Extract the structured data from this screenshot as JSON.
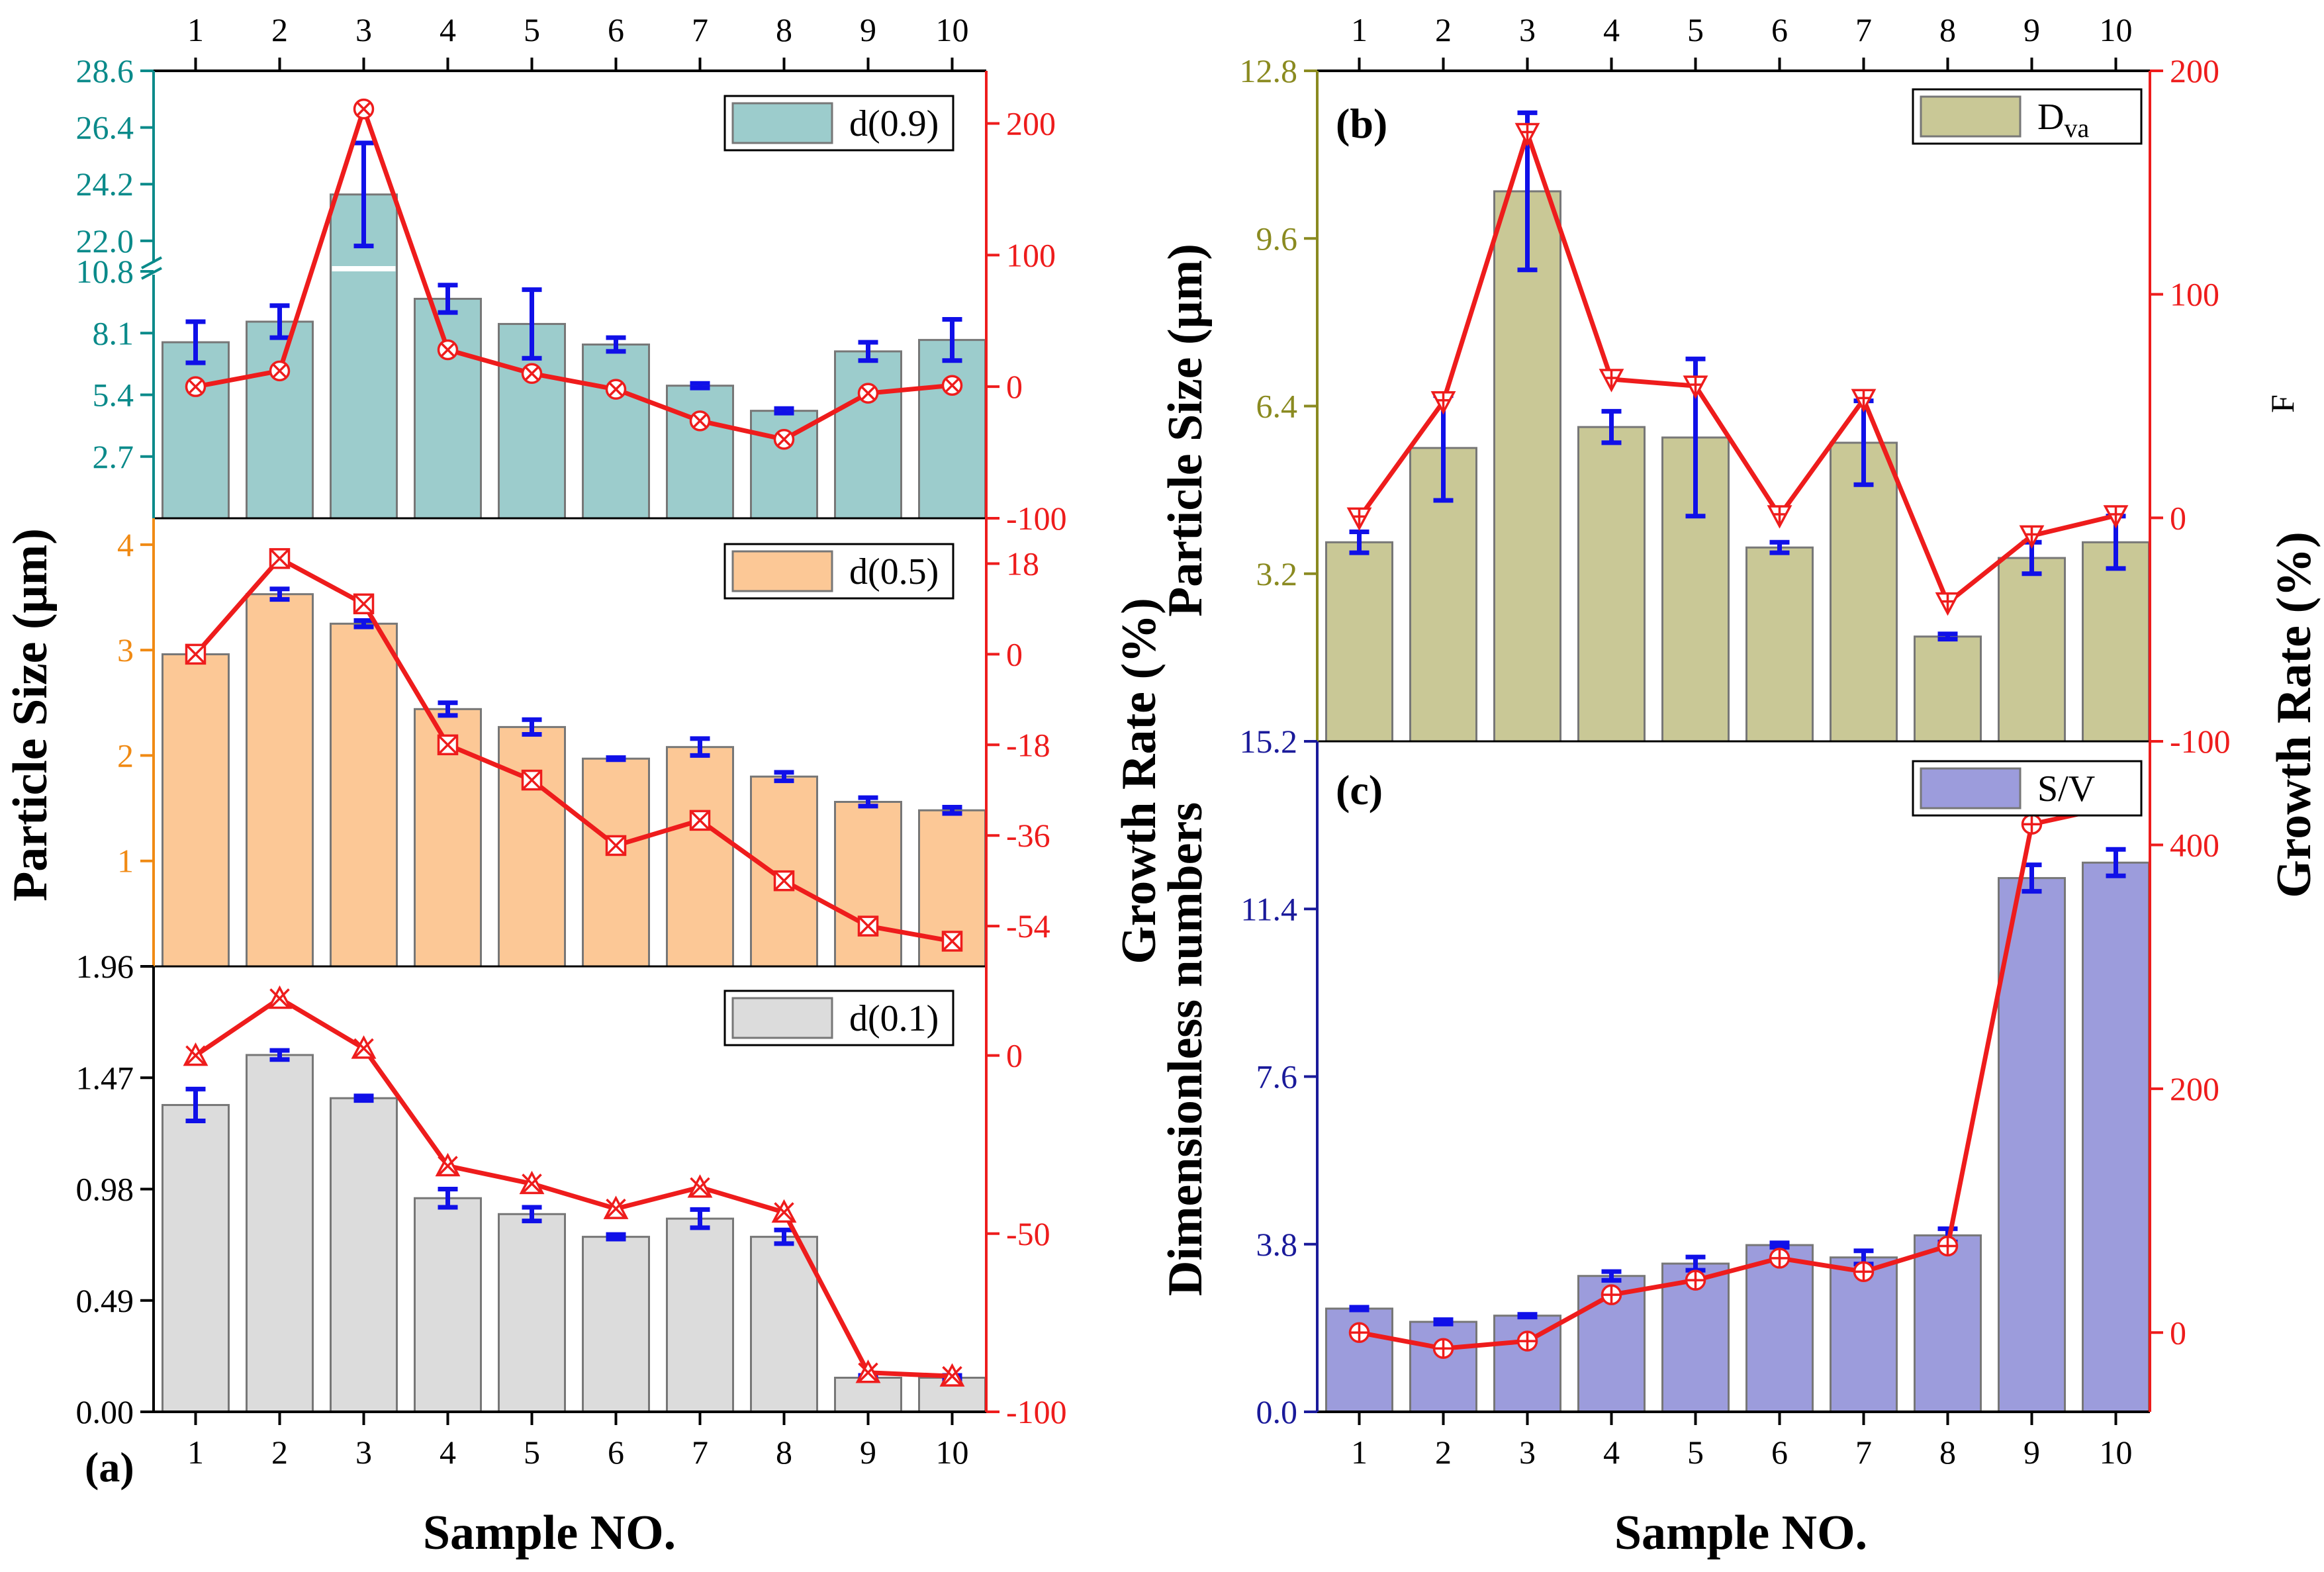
{
  "colors": {
    "growth": "#ee1c1c",
    "error": "#1010e8",
    "d09_fill": "#9ccccc",
    "d09_axis": "#0a8a8a",
    "d05_fill": "#fcc896",
    "d05_axis": "#f08a14",
    "d01_fill": "#dcdcdc",
    "d01_axis": "#000000",
    "dva_fill": "#c9c896",
    "dva_axis": "#8a8a20",
    "sv_fill": "#9c9cdc",
    "sv_axis": "#1a1a9a",
    "bar_edge": "#777777"
  },
  "labels": {
    "panel_a": "(a)",
    "panel_b": "(b)",
    "panel_c": "(c)",
    "x_left": "Sample NO.",
    "x_right": "Sample NO.",
    "y_particle_left": "Particle Size (μm)",
    "y_growth_left": "Growth Rate (%)",
    "y_particle_right": "Particle Size (μm)",
    "y_dimensionless": "Dimensionless numbers",
    "y_growth_right": "Growth Rate (%)",
    "stray_f": "F"
  },
  "chart_data": [
    {
      "id": "d09",
      "panel": "(a)",
      "type": "bar",
      "legend": "d(0.9)",
      "legend_position": "top-right",
      "categories": [
        "1",
        "2",
        "3",
        "4",
        "5",
        "6",
        "7",
        "8",
        "9",
        "10"
      ],
      "values": [
        7.7,
        8.6,
        23.8,
        9.6,
        8.5,
        7.6,
        5.8,
        4.7,
        7.3,
        7.8
      ],
      "errors": [
        0.9,
        0.7,
        2.0,
        0.6,
        1.5,
        0.3,
        0.1,
        0.1,
        0.4,
        0.9
      ],
      "ylabel": "Particle Size (μm)",
      "ylim_lower": [
        0,
        10.8
      ],
      "ylim_upper": [
        21.2,
        28.6
      ],
      "axis_break": true,
      "yticks": [
        "2.7",
        "5.4",
        "8.1",
        "10.8",
        "22.0",
        "24.2",
        "26.4",
        "28.6"
      ],
      "growth_rate": [
        0,
        12,
        211,
        28,
        10,
        -2,
        -26,
        -40,
        -5,
        1
      ],
      "growth_ylim": [
        -100,
        240
      ],
      "growth_yticks": [
        "-100",
        "0",
        "100",
        "200"
      ],
      "growth_marker": "circle-x"
    },
    {
      "id": "d05",
      "panel": "(a)",
      "type": "bar",
      "legend": "d(0.5)",
      "legend_position": "top-right",
      "categories": [
        "1",
        "2",
        "3",
        "4",
        "5",
        "6",
        "7",
        "8",
        "9",
        "10"
      ],
      "values": [
        2.96,
        3.53,
        3.25,
        2.44,
        2.27,
        1.97,
        2.08,
        1.8,
        1.56,
        1.48
      ],
      "errors": [
        0.03,
        0.05,
        0.03,
        0.06,
        0.07,
        0.01,
        0.08,
        0.04,
        0.04,
        0.03
      ],
      "ylabel": "Particle Size (μm)",
      "ylim": [
        0,
        4.25
      ],
      "yticks": [
        "1",
        "2",
        "3",
        "4"
      ],
      "growth_rate": [
        0,
        19,
        10,
        -18,
        -25,
        -38,
        -33,
        -45,
        -54,
        -57
      ],
      "growth_ylim": [
        -62,
        27
      ],
      "growth_yticks": [
        "-54",
        "-36",
        "-18",
        "0",
        "18"
      ],
      "growth_marker": "square-x"
    },
    {
      "id": "d01",
      "panel": "(a)",
      "type": "bar",
      "legend": "d(0.1)",
      "legend_position": "top-right",
      "categories": [
        "1",
        "2",
        "3",
        "4",
        "5",
        "6",
        "7",
        "8",
        "9",
        "10"
      ],
      "values": [
        1.35,
        1.57,
        1.38,
        0.94,
        0.87,
        0.77,
        0.85,
        0.77,
        0.15,
        0.15
      ],
      "errors": [
        0.07,
        0.02,
        0.01,
        0.04,
        0.03,
        0.01,
        0.04,
        0.03,
        0.01,
        0.01
      ],
      "ylabel": "Particle Size (μm)",
      "ylim": [
        0,
        1.96
      ],
      "yticks": [
        "0.00",
        "0.49",
        "0.98",
        "1.47",
        "1.96"
      ],
      "growth_rate": [
        0,
        16,
        2,
        -31,
        -36,
        -43,
        -37,
        -44,
        -89,
        -90
      ],
      "growth_ylim": [
        -100,
        25
      ],
      "growth_yticks": [
        "-100",
        "-50",
        "0"
      ],
      "growth_marker": "triangle-x"
    },
    {
      "id": "dva",
      "panel": "(b)",
      "type": "bar",
      "legend": "D",
      "legend_sub": "va",
      "legend_position": "top-right",
      "categories": [
        "1",
        "2",
        "3",
        "4",
        "5",
        "6",
        "7",
        "8",
        "9",
        "10"
      ],
      "values": [
        3.8,
        5.6,
        10.5,
        6.0,
        5.8,
        3.7,
        5.7,
        2.0,
        3.5,
        3.8
      ],
      "errors": [
        0.2,
        1.0,
        1.5,
        0.3,
        1.5,
        0.1,
        0.8,
        0.05,
        0.3,
        0.5
      ],
      "ylabel": "Particle Size (μm)",
      "ylim": [
        0,
        12.8
      ],
      "yticks": [
        "3.2",
        "6.4",
        "9.6",
        "12.8"
      ],
      "growth_rate": [
        0,
        52,
        172,
        62,
        59,
        1,
        53,
        -38,
        -8,
        1
      ],
      "growth_ylim": [
        -100,
        200
      ],
      "growth_yticks": [
        "-100",
        "0",
        "100",
        "200"
      ],
      "growth_marker": "triangle-down"
    },
    {
      "id": "sv",
      "panel": "(c)",
      "type": "bar",
      "legend": "S/V",
      "legend_position": "top-right",
      "categories": [
        "1",
        "2",
        "3",
        "4",
        "5",
        "6",
        "7",
        "8",
        "9",
        "10"
      ],
      "values": [
        2.34,
        2.04,
        2.18,
        3.08,
        3.36,
        3.78,
        3.5,
        4.0,
        12.1,
        12.45
      ],
      "errors": [
        0.03,
        0.05,
        0.03,
        0.1,
        0.15,
        0.05,
        0.15,
        0.15,
        0.3,
        0.3
      ],
      "ylabel": "Dimensionless numbers",
      "ylim": [
        0,
        15.2
      ],
      "yticks": [
        "0.0",
        "3.8",
        "7.6",
        "11.4",
        "15.2"
      ],
      "growth_rate": [
        0,
        -13,
        -7,
        31,
        43,
        61,
        50,
        71,
        417,
        432
      ],
      "growth_ylim": [
        -65,
        485
      ],
      "growth_yticks": [
        "0",
        "200",
        "400"
      ],
      "growth_marker": "circle-plus"
    }
  ]
}
